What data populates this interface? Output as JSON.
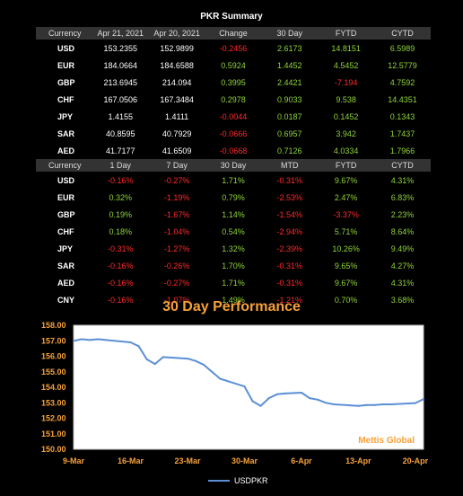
{
  "title": "PKR Summary",
  "table1": {
    "headers": [
      "Currency",
      "Apr 21, 2021",
      "Apr 20, 2021",
      "Change",
      "30 Day",
      "FYTD",
      "CYTD"
    ],
    "rows": [
      [
        "USD",
        "153.2355",
        "152.9899",
        "-0.2456",
        "2.6173",
        "14.8151",
        "6.5989"
      ],
      [
        "EUR",
        "184.0664",
        "184.6588",
        "0.5924",
        "1.4452",
        "4.5452",
        "12.5779"
      ],
      [
        "GBP",
        "213.6945",
        "214.094",
        "0.3995",
        "2.4421",
        "-7.194",
        "4.7592"
      ],
      [
        "CHF",
        "167.0506",
        "167.3484",
        "0.2978",
        "0.9033",
        "9.538",
        "14.4351"
      ],
      [
        "JPY",
        "1.4155",
        "1.4111",
        "-0.0044",
        "0.0187",
        "0.1452",
        "0.1343"
      ],
      [
        "SAR",
        "40.8595",
        "40.7929",
        "-0.0666",
        "0.6957",
        "3.942",
        "1.7437"
      ],
      [
        "AED",
        "41.7177",
        "41.6509",
        "-0.0668",
        "0.7126",
        "4.0334",
        "1.7966"
      ],
      [
        "CNY",
        "23.5925",
        "23.5538",
        "-0.0387",
        "0.3517",
        "0.1644",
        "0.907"
      ]
    ]
  },
  "table2": {
    "headers": [
      "Currency",
      "1 Day",
      "7 Day",
      "30 Day",
      "MTD",
      "FYTD",
      "CYTD"
    ],
    "rows": [
      [
        "USD",
        "-0.16%",
        "-0.27%",
        "1.71%",
        "-0.31%",
        "9.67%",
        "4.31%"
      ],
      [
        "EUR",
        "0.32%",
        "-1.19%",
        "0.79%",
        "-2.53%",
        "2.47%",
        "6.83%"
      ],
      [
        "GBP",
        "0.19%",
        "-1.67%",
        "1.14%",
        "-1.54%",
        "-3.37%",
        "2.23%"
      ],
      [
        "CHF",
        "0.18%",
        "-1.04%",
        "0.54%",
        "-2.94%",
        "5.71%",
        "8.64%"
      ],
      [
        "JPY",
        "-0.31%",
        "-1.27%",
        "1.32%",
        "-2.39%",
        "10.26%",
        "9.49%"
      ],
      [
        "SAR",
        "-0.16%",
        "-0.26%",
        "1.70%",
        "-0.31%",
        "9.65%",
        "4.27%"
      ],
      [
        "AED",
        "-0.16%",
        "-0.27%",
        "1.71%",
        "-0.31%",
        "9.67%",
        "4.31%"
      ],
      [
        "CNY",
        "-0.16%",
        "-1.07%",
        "1.49%",
        "-1.21%",
        "0.70%",
        "3.68%"
      ]
    ]
  },
  "colors": {
    "positive": "#8fd43a",
    "negative": "#ff2a2a",
    "accent": "#f7a13a",
    "line": "#5b8fd6",
    "header_bg": "#333333"
  },
  "chart_data": {
    "type": "line",
    "title": "30 Day Performance",
    "watermark": "Mettis Global",
    "ylim": [
      150.0,
      158.0
    ],
    "y_ticks": [
      "150.00",
      "151.00",
      "152.00",
      "153.00",
      "154.00",
      "155.00",
      "156.00",
      "157.00",
      "158.00"
    ],
    "x_ticks": [
      "9-Mar",
      "16-Mar",
      "23-Mar",
      "30-Mar",
      "6-Apr",
      "13-Apr",
      "20-Apr"
    ],
    "x_range_days": [
      0,
      43
    ],
    "series": [
      {
        "name": "USDPKR",
        "x": [
          0,
          1,
          2,
          3,
          4,
          7,
          8,
          9,
          10,
          11,
          14,
          15,
          16,
          17,
          18,
          21,
          22,
          23,
          24,
          25,
          26,
          28,
          29,
          30,
          31,
          32,
          35,
          36,
          37,
          38,
          39,
          42,
          43
        ],
        "values": [
          157.0,
          157.1,
          157.05,
          157.1,
          157.05,
          156.9,
          156.65,
          155.8,
          155.5,
          155.95,
          155.85,
          155.7,
          155.45,
          155.0,
          154.55,
          154.05,
          153.1,
          152.8,
          153.3,
          153.55,
          153.6,
          153.65,
          153.3,
          153.2,
          153.0,
          152.9,
          152.8,
          152.85,
          152.85,
          152.9,
          152.9,
          152.98,
          153.24
        ]
      }
    ]
  }
}
